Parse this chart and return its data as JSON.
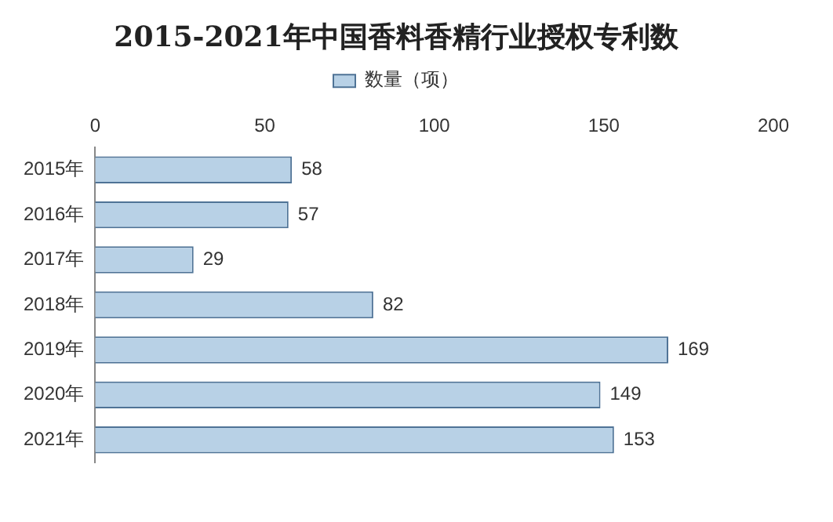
{
  "chart_data": {
    "type": "bar",
    "orientation": "horizontal",
    "title": "2015-2021年中国香料香精行业授权专利数",
    "categories": [
      "2015年",
      "2016年",
      "2017年",
      "2018年",
      "2019年",
      "2020年",
      "2021年"
    ],
    "series": [
      {
        "name": "数量（项）",
        "color": "#b8d1e6",
        "values": [
          58,
          57,
          29,
          82,
          169,
          149,
          153
        ]
      }
    ],
    "xlim": [
      0,
      200
    ],
    "xticks": [
      0,
      50,
      100,
      150,
      200
    ],
    "grid": false,
    "legend": "top",
    "data_labels": true
  }
}
